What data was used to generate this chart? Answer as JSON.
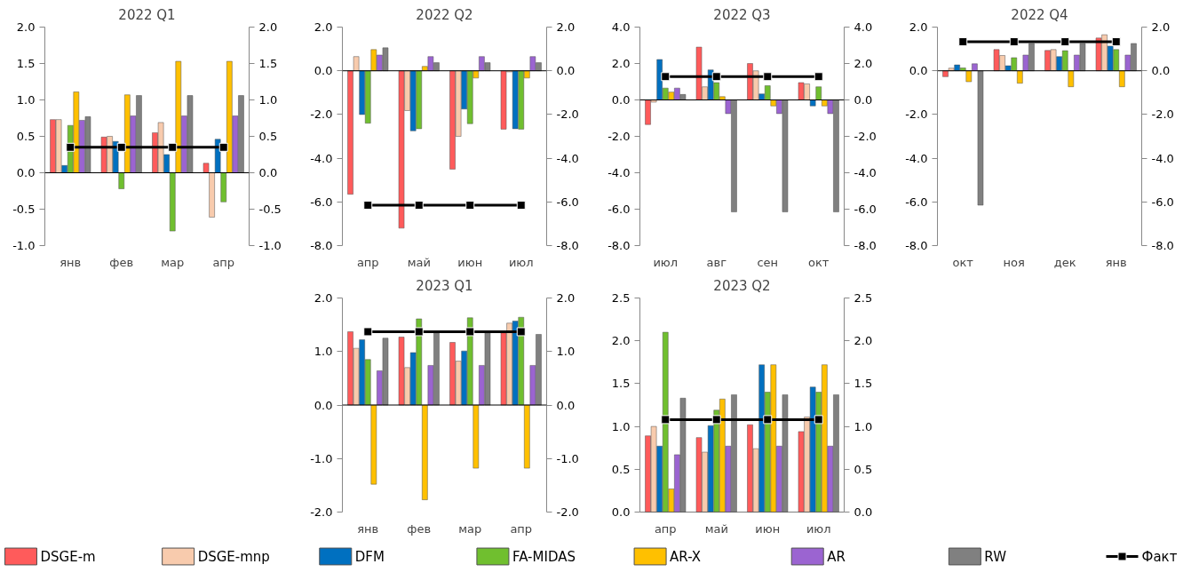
{
  "chart_data": [
    {
      "type": "bar",
      "title": "2022 Q1",
      "categories": [
        "янв",
        "фев",
        "мар",
        "апр"
      ],
      "ylim": [
        -1.0,
        2.0
      ],
      "yticks": [
        {
          "value": -1,
          "label": "-1.0"
        },
        {
          "value": -0.5,
          "label": "-0.5"
        },
        {
          "value": 0,
          "label": "0.0"
        },
        {
          "value": 0.5,
          "label": "0.5"
        },
        {
          "value": 1,
          "label": "1.0"
        },
        {
          "value": 1.5,
          "label": "1.5"
        },
        {
          "value": 2,
          "label": "2.0"
        }
      ],
      "y2lim": [
        -1.0,
        2.0
      ],
      "y2ticks": [
        {
          "value": -1,
          "label": "-1.0"
        },
        {
          "value": -0.5,
          "label": "-0.5"
        },
        {
          "value": 0,
          "label": "0.0"
        },
        {
          "value": 0.5,
          "label": "0.5"
        },
        {
          "value": 1,
          "label": "1.0"
        },
        {
          "value": 1.5,
          "label": "1.5"
        },
        {
          "value": 2,
          "label": "2.0"
        }
      ],
      "legend": "bottom",
      "series": [
        {
          "name": "DSGE-m",
          "color": "#ff5b5b",
          "values": [
            0.73,
            0.49,
            0.55,
            0.13
          ]
        },
        {
          "name": "DSGE-mnp",
          "color": "#f8cbad",
          "values": [
            0.73,
            0.5,
            0.69,
            -0.61
          ]
        },
        {
          "name": "DFM",
          "color": "#0070c0",
          "values": [
            0.1,
            0.43,
            0.25,
            0.46
          ]
        },
        {
          "name": "FA-MIDAS",
          "color": "#70bf2f",
          "values": [
            0.65,
            -0.22,
            -0.8,
            -0.4
          ]
        },
        {
          "name": "AR-X",
          "color": "#ffc000",
          "values": [
            1.11,
            1.07,
            1.53,
            1.53
          ]
        },
        {
          "name": "AR",
          "color": "#9b64d1",
          "values": [
            0.72,
            0.78,
            0.78,
            0.78
          ]
        },
        {
          "name": "RW",
          "color": "#808080",
          "values": [
            0.77,
            1.06,
            1.06,
            1.06
          ]
        },
        {
          "name": "Факт",
          "type": "line",
          "marker": "square",
          "color": "#000000",
          "values": [
            0.35,
            0.35,
            0.35,
            0.35
          ]
        }
      ]
    },
    {
      "type": "bar",
      "title": "2022 Q2",
      "categories": [
        "апр",
        "май",
        "июн",
        "июл"
      ],
      "ylim": [
        -8.0,
        2.0
      ],
      "yticks": [
        {
          "value": -8,
          "label": "-8.0"
        },
        {
          "value": -6,
          "label": "-6.0"
        },
        {
          "value": -4,
          "label": "-4.0"
        },
        {
          "value": -2,
          "label": "-2.0"
        },
        {
          "value": 0,
          "label": "0.0"
        },
        {
          "value": 2,
          "label": "2.0"
        }
      ],
      "y2lim": [
        -8.0,
        2.0
      ],
      "y2ticks": [
        {
          "value": -8,
          "label": "-8.0"
        },
        {
          "value": -6,
          "label": "-6.0"
        },
        {
          "value": -4,
          "label": "-4.0"
        },
        {
          "value": -2,
          "label": "-2.0"
        },
        {
          "value": 0,
          "label": "0.0"
        },
        {
          "value": 2,
          "label": "2.0"
        }
      ],
      "series": [
        {
          "color": "#ff5b5b",
          "values": [
            -5.65,
            -7.2,
            -4.5,
            -2.67
          ]
        },
        {
          "color": "#f8cbad",
          "values": [
            0.65,
            -1.82,
            -3.0,
            -0.05
          ]
        },
        {
          "color": "#0070c0",
          "values": [
            -2.0,
            -2.75,
            -1.75,
            -2.65
          ]
        },
        {
          "color": "#70bf2f",
          "values": [
            -2.4,
            -2.65,
            -2.42,
            -2.67
          ]
        },
        {
          "color": "#ffc000",
          "values": [
            0.97,
            0.2,
            -0.33,
            -0.33
          ]
        },
        {
          "color": "#9b64d1",
          "values": [
            0.72,
            0.65,
            0.65,
            0.65
          ]
        },
        {
          "color": "#808080",
          "values": [
            1.05,
            0.37,
            0.37,
            0.37
          ]
        },
        {
          "type": "line",
          "marker": "square",
          "color": "#000000",
          "values": [
            -6.15,
            -6.15,
            -6.15,
            -6.15
          ]
        }
      ]
    },
    {
      "type": "bar",
      "title": "2022 Q3",
      "categories": [
        "июл",
        "авг",
        "сен",
        "окт"
      ],
      "ylim": [
        -8.0,
        4.0
      ],
      "yticks": [
        {
          "value": -8,
          "label": "-8.0"
        },
        {
          "value": -6,
          "label": "-6.0"
        },
        {
          "value": -4,
          "label": "-4.0"
        },
        {
          "value": -2,
          "label": "-2.0"
        },
        {
          "value": 0,
          "label": "0.0"
        },
        {
          "value": 2,
          "label": "2.0"
        },
        {
          "value": 4,
          "label": "4.0"
        }
      ],
      "y2lim": [
        -8.0,
        4.0
      ],
      "y2ticks": [
        {
          "value": -8,
          "label": "-8.0"
        },
        {
          "value": -6,
          "label": "-6.0"
        },
        {
          "value": -4,
          "label": "-4.0"
        },
        {
          "value": -2,
          "label": "-2.0"
        },
        {
          "value": 0,
          "label": "0.0"
        },
        {
          "value": 2,
          "label": "2.0"
        },
        {
          "value": 4,
          "label": "4.0"
        }
      ],
      "series": [
        {
          "color": "#ff5b5b",
          "values": [
            -1.35,
            2.9,
            2.0,
            0.95
          ]
        },
        {
          "color": "#f8cbad",
          "values": [
            -0.12,
            0.72,
            1.6,
            0.88
          ]
        },
        {
          "color": "#0070c0",
          "values": [
            2.22,
            1.65,
            0.33,
            -0.33
          ]
        },
        {
          "color": "#70bf2f",
          "values": [
            0.65,
            0.95,
            0.78,
            0.72
          ]
        },
        {
          "color": "#ffc000",
          "values": [
            0.43,
            0.18,
            -0.33,
            -0.33
          ]
        },
        {
          "color": "#9b64d1",
          "values": [
            0.65,
            -0.75,
            -0.75,
            -0.75
          ]
        },
        {
          "color": "#808080",
          "values": [
            0.3,
            -6.15,
            -6.15,
            -6.15
          ]
        },
        {
          "type": "line",
          "marker": "square",
          "color": "#000000",
          "values": [
            1.28,
            1.28,
            1.28,
            1.28
          ]
        }
      ]
    },
    {
      "type": "bar",
      "title": "2022 Q4",
      "categories": [
        "окт",
        "ноя",
        "дек",
        "янв"
      ],
      "ylim": [
        -8.0,
        2.0
      ],
      "yticks": [
        {
          "value": -8,
          "label": "-8.0"
        },
        {
          "value": -6,
          "label": "-6.0"
        },
        {
          "value": -4,
          "label": "-4.0"
        },
        {
          "value": -2,
          "label": "-2.0"
        },
        {
          "value": 0,
          "label": "0.0"
        },
        {
          "value": 2,
          "label": "2.0"
        }
      ],
      "y2lim": [
        -8.0,
        2.0
      ],
      "y2ticks": [
        {
          "value": -8,
          "label": "-8.0"
        },
        {
          "value": -6,
          "label": "-6.0"
        },
        {
          "value": -4,
          "label": "-4.0"
        },
        {
          "value": -2,
          "label": "-2.0"
        },
        {
          "value": 0,
          "label": "0.0"
        },
        {
          "value": 2,
          "label": "2.0"
        }
      ],
      "series": [
        {
          "color": "#ff5b5b",
          "values": [
            -0.27,
            0.97,
            0.93,
            1.5
          ]
        },
        {
          "color": "#f8cbad",
          "values": [
            0.12,
            0.7,
            0.97,
            1.65
          ]
        },
        {
          "color": "#0070c0",
          "values": [
            0.27,
            0.23,
            0.65,
            1.13
          ]
        },
        {
          "color": "#70bf2f",
          "values": [
            0.13,
            0.6,
            0.92,
            0.97
          ]
        },
        {
          "color": "#ffc000",
          "values": [
            -0.5,
            -0.57,
            -0.73,
            -0.73
          ]
        },
        {
          "color": "#9b64d1",
          "values": [
            0.32,
            0.72,
            0.72,
            0.72
          ]
        },
        {
          "color": "#808080",
          "values": [
            -6.15,
            1.25,
            1.25,
            1.25
          ]
        },
        {
          "type": "line",
          "marker": "square",
          "color": "#000000",
          "values": [
            1.33,
            1.33,
            1.33,
            1.33
          ]
        }
      ]
    },
    {
      "type": "bar",
      "title": "2023 Q1",
      "categories": [
        "янв",
        "фев",
        "мар",
        "апр"
      ],
      "ylim": [
        -2.0,
        2.0
      ],
      "yticks": [
        {
          "value": -2,
          "label": "-2.0"
        },
        {
          "value": -1,
          "label": "-1.0"
        },
        {
          "value": 0,
          "label": "0.0"
        },
        {
          "value": 1,
          "label": "1.0"
        },
        {
          "value": 2,
          "label": "2.0"
        }
      ],
      "y2lim": [
        -2.0,
        2.0
      ],
      "y2ticks": [
        {
          "value": -2,
          "label": "-2.0"
        },
        {
          "value": -1,
          "label": "-1.0"
        },
        {
          "value": 0,
          "label": "0.0"
        },
        {
          "value": 1,
          "label": "1.0"
        },
        {
          "value": 2,
          "label": "2.0"
        }
      ],
      "series": [
        {
          "color": "#ff5b5b",
          "values": [
            1.37,
            1.27,
            1.17,
            1.35
          ]
        },
        {
          "color": "#f8cbad",
          "values": [
            1.06,
            0.7,
            0.82,
            1.53
          ]
        },
        {
          "color": "#0070c0",
          "values": [
            1.22,
            0.98,
            1.01,
            1.57
          ]
        },
        {
          "color": "#70bf2f",
          "values": [
            0.85,
            1.61,
            1.63,
            1.64
          ]
        },
        {
          "color": "#ffc000",
          "values": [
            -1.48,
            -1.77,
            -1.18,
            -1.18
          ]
        },
        {
          "color": "#9b64d1",
          "values": [
            0.64,
            0.74,
            0.74,
            0.74
          ]
        },
        {
          "color": "#808080",
          "values": [
            1.25,
            1.35,
            1.35,
            1.32
          ]
        },
        {
          "type": "line",
          "marker": "square",
          "color": "#000000",
          "values": [
            1.37,
            1.37,
            1.37,
            1.37
          ]
        }
      ]
    },
    {
      "type": "bar",
      "title": "2023 Q2",
      "categories": [
        "апр",
        "май",
        "июн",
        "июл"
      ],
      "ylim": [
        0.0,
        2.5
      ],
      "yticks": [
        {
          "value": 0,
          "label": "0.0"
        },
        {
          "value": 0.5,
          "label": "0.5"
        },
        {
          "value": 1,
          "label": "1.0"
        },
        {
          "value": 1.5,
          "label": "1.5"
        },
        {
          "value": 2,
          "label": "2.0"
        },
        {
          "value": 2.5,
          "label": "2.5"
        }
      ],
      "y2lim": [
        0.0,
        2.5
      ],
      "y2ticks": [
        {
          "value": 0,
          "label": "0.0"
        },
        {
          "value": 0.5,
          "label": "0.5"
        },
        {
          "value": 1,
          "label": "1.0"
        },
        {
          "value": 1.5,
          "label": "1.5"
        },
        {
          "value": 2,
          "label": "2.0"
        },
        {
          "value": 2.5,
          "label": "2.5"
        }
      ],
      "series": [
        {
          "color": "#ff5b5b",
          "values": [
            0.89,
            0.87,
            1.02,
            0.94
          ]
        },
        {
          "color": "#f8cbad",
          "values": [
            1.0,
            0.7,
            0.74,
            1.11
          ]
        },
        {
          "color": "#0070c0",
          "values": [
            0.77,
            1.01,
            1.72,
            1.46
          ]
        },
        {
          "color": "#70bf2f",
          "values": [
            2.1,
            1.19,
            1.4,
            1.4
          ]
        },
        {
          "color": "#ffc000",
          "values": [
            0.27,
            1.32,
            1.72,
            1.72
          ]
        },
        {
          "color": "#9b64d1",
          "values": [
            0.67,
            0.77,
            0.77,
            0.77
          ]
        },
        {
          "color": "#808080",
          "values": [
            1.33,
            1.37,
            1.37,
            1.37
          ]
        },
        {
          "type": "line",
          "marker": "square",
          "color": "#000000",
          "values": [
            1.08,
            1.08,
            1.08,
            1.08
          ]
        }
      ]
    }
  ]
}
